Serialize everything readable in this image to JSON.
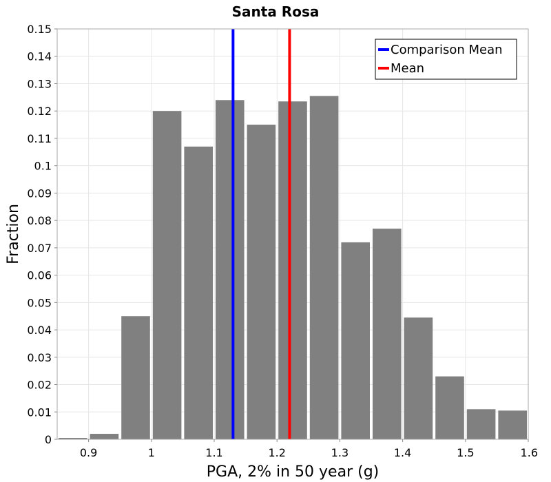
{
  "chart_data": {
    "type": "bar",
    "title": "Santa Rosa",
    "xlabel": "PGA, 2% in 50 year (g)",
    "ylabel": "Fraction",
    "xlim": [
      0.85,
      1.6
    ],
    "ylim": [
      0,
      0.15
    ],
    "bin_width": 0.05,
    "bins": [
      {
        "center": 0.875,
        "value": 0.0005
      },
      {
        "center": 0.925,
        "value": 0.002
      },
      {
        "center": 0.975,
        "value": 0.045
      },
      {
        "center": 1.025,
        "value": 0.12
      },
      {
        "center": 1.075,
        "value": 0.107
      },
      {
        "center": 1.125,
        "value": 0.124
      },
      {
        "center": 1.175,
        "value": 0.115
      },
      {
        "center": 1.225,
        "value": 0.1235
      },
      {
        "center": 1.275,
        "value": 0.1255
      },
      {
        "center": 1.325,
        "value": 0.072
      },
      {
        "center": 1.375,
        "value": 0.077
      },
      {
        "center": 1.425,
        "value": 0.0445
      },
      {
        "center": 1.475,
        "value": 0.023
      },
      {
        "center": 1.525,
        "value": 0.011
      },
      {
        "center": 1.575,
        "value": 0.0105
      }
    ],
    "x_ticks": [
      "0.9",
      "1",
      "1.1",
      "1.2",
      "1.3",
      "1.4",
      "1.5",
      "1.6"
    ],
    "x_tick_values": [
      0.9,
      1.0,
      1.1,
      1.2,
      1.3,
      1.4,
      1.5,
      1.6
    ],
    "y_ticks": [
      "0",
      "0.01",
      "0.02",
      "0.03",
      "0.04",
      "0.05",
      "0.06",
      "0.07",
      "0.08",
      "0.09",
      "0.1",
      "0.11",
      "0.12",
      "0.13",
      "0.14",
      "0.15"
    ],
    "y_tick_values": [
      0,
      0.01,
      0.02,
      0.03,
      0.04,
      0.05,
      0.06,
      0.07,
      0.08,
      0.09,
      0.1,
      0.11,
      0.12,
      0.13,
      0.14,
      0.15
    ],
    "vertical_lines": [
      {
        "name": "Comparison Mean",
        "x": 1.13,
        "color": "#0000ff"
      },
      {
        "name": "Mean",
        "x": 1.22,
        "color": "#ff0000"
      }
    ],
    "legend": {
      "position": "top-right",
      "entries": [
        {
          "label": "Comparison Mean",
          "color": "#0000ff"
        },
        {
          "label": "Mean",
          "color": "#ff0000"
        }
      ]
    },
    "bar_color": "#808080",
    "grid": true
  }
}
